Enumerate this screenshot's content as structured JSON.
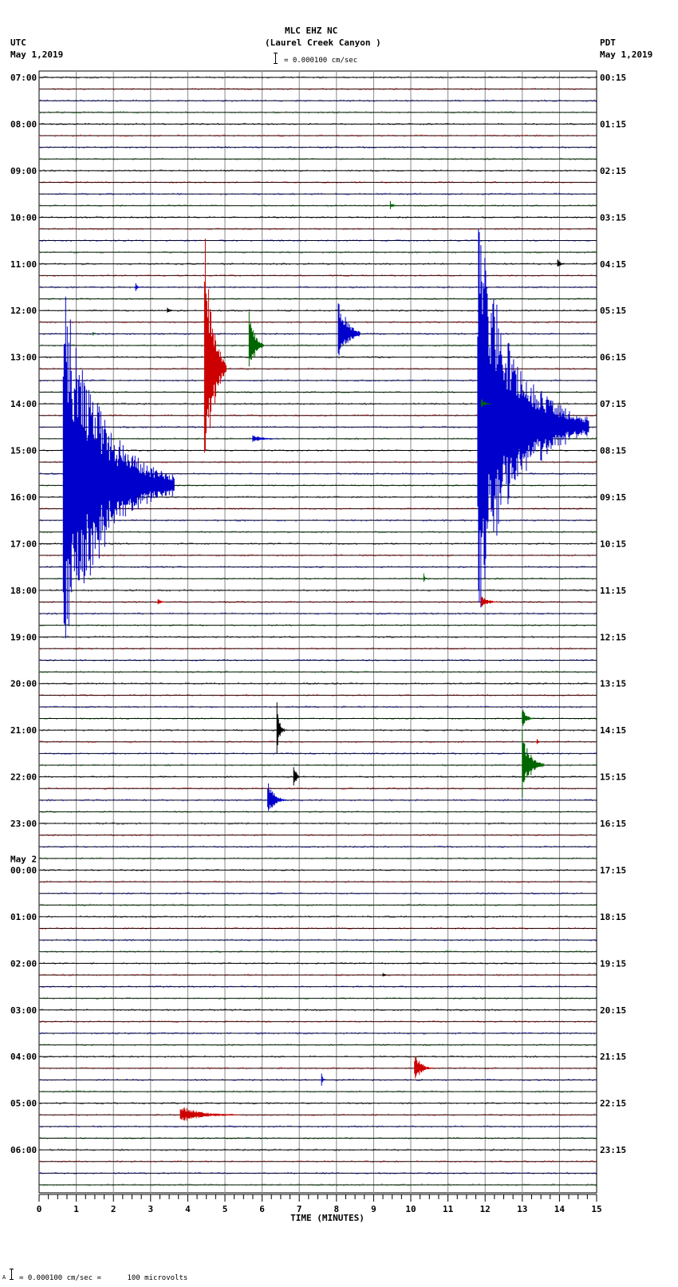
{
  "header": {
    "station": "MLC EHZ NC",
    "location": "(Laurel Creek Canyon )",
    "left_tz": "UTC",
    "left_date": "May 1,2019",
    "right_tz": "PDT",
    "right_date": "May 1,2019",
    "scale_text": "= 0.000100 cm/sec"
  },
  "footer": {
    "scale_text": "= 0.000100 cm/sec =      100 microvolts",
    "prefix": "A"
  },
  "chart_data": {
    "type": "line",
    "title": "MLC EHZ NC (Laurel Creek Canyon )",
    "xlabel": "TIME (MINUTES)",
    "x_ticks": [
      0,
      1,
      2,
      3,
      4,
      5,
      6,
      7,
      8,
      9,
      10,
      11,
      12,
      13,
      14,
      15
    ],
    "xlim": [
      0,
      15
    ],
    "grid": true,
    "trace_colors": [
      "#000000",
      "#cc0000",
      "#0000cc",
      "#006600"
    ],
    "traces_per_hour": 4,
    "left_labels": [
      "07:00",
      "08:00",
      "09:00",
      "10:00",
      "11:00",
      "12:00",
      "13:00",
      "14:00",
      "15:00",
      "16:00",
      "17:00",
      "18:00",
      "19:00",
      "20:00",
      "21:00",
      "22:00",
      "23:00",
      "May 2\n00:00",
      "01:00",
      "02:00",
      "03:00",
      "04:00",
      "05:00",
      "06:00"
    ],
    "right_labels": [
      "00:15",
      "01:15",
      "02:15",
      "03:15",
      "04:15",
      "05:15",
      "06:15",
      "07:15",
      "08:15",
      "09:15",
      "10:15",
      "11:15",
      "12:15",
      "13:15",
      "14:15",
      "15:15",
      "16:15",
      "17:15",
      "18:15",
      "19:15",
      "20:15",
      "21:15",
      "22:15",
      "23:15"
    ],
    "events": [
      {
        "trace": 11,
        "minute": 9.45,
        "amp": 6,
        "dur": 0.2,
        "color": 3
      },
      {
        "trace": 16,
        "minute": 13.95,
        "amp": 8,
        "dur": 0.2,
        "color": 0
      },
      {
        "trace": 18,
        "minute": 2.6,
        "amp": 6,
        "dur": 0.15,
        "color": 2
      },
      {
        "trace": 20,
        "minute": 3.45,
        "amp": 4,
        "dur": 0.25,
        "color": 0
      },
      {
        "trace": 22,
        "minute": 1.45,
        "amp": 4,
        "dur": 0.1,
        "color": 3
      },
      {
        "trace": 25,
        "minute": 4.45,
        "amp": 190,
        "dur": 0.6,
        "color": 1
      },
      {
        "trace": 23,
        "minute": 5.65,
        "amp": 50,
        "dur": 0.4,
        "color": 3
      },
      {
        "trace": 22,
        "minute": 8.05,
        "amp": 60,
        "dur": 0.6,
        "color": 2
      },
      {
        "trace": 31,
        "minute": 5.75,
        "amp": 5,
        "dur": 0.8,
        "color": 2
      },
      {
        "trace": 35,
        "minute": 0.65,
        "amp": 260,
        "dur": 3.0,
        "color": 2
      },
      {
        "trace": 30,
        "minute": 11.8,
        "amp": 260,
        "dur": 3.0,
        "color": 2
      },
      {
        "trace": 28,
        "minute": 11.9,
        "amp": 8,
        "dur": 0.3,
        "color": 3
      },
      {
        "trace": 43,
        "minute": 10.35,
        "amp": 8,
        "dur": 0.1,
        "color": 3
      },
      {
        "trace": 45,
        "minute": 3.2,
        "amp": 5,
        "dur": 0.2,
        "color": 1
      },
      {
        "trace": 45,
        "minute": 11.9,
        "amp": 8,
        "dur": 0.5,
        "color": 1
      },
      {
        "trace": 57,
        "minute": 13.4,
        "amp": 5,
        "dur": 0.1,
        "color": 1
      },
      {
        "trace": 56,
        "minute": 6.4,
        "amp": 40,
        "dur": 0.2,
        "color": 0
      },
      {
        "trace": 60,
        "minute": 6.85,
        "amp": 25,
        "dur": 0.15,
        "color": 0
      },
      {
        "trace": 59,
        "minute": 13.0,
        "amp": 45,
        "dur": 0.6,
        "color": 3
      },
      {
        "trace": 62,
        "minute": 6.15,
        "amp": 25,
        "dur": 0.5,
        "color": 2
      },
      {
        "trace": 55,
        "minute": 13.0,
        "amp": 15,
        "dur": 0.3,
        "color": 3
      },
      {
        "trace": 77,
        "minute": 9.25,
        "amp": 4,
        "dur": 0.15,
        "color": 0
      },
      {
        "trace": 85,
        "minute": 10.1,
        "amp": 20,
        "dur": 0.5,
        "color": 1
      },
      {
        "trace": 86,
        "minute": 7.6,
        "amp": 8,
        "dur": 0.1,
        "color": 2
      },
      {
        "trace": 89,
        "minute": 3.8,
        "amp": 12,
        "dur": 1.6,
        "color": 1
      }
    ]
  }
}
